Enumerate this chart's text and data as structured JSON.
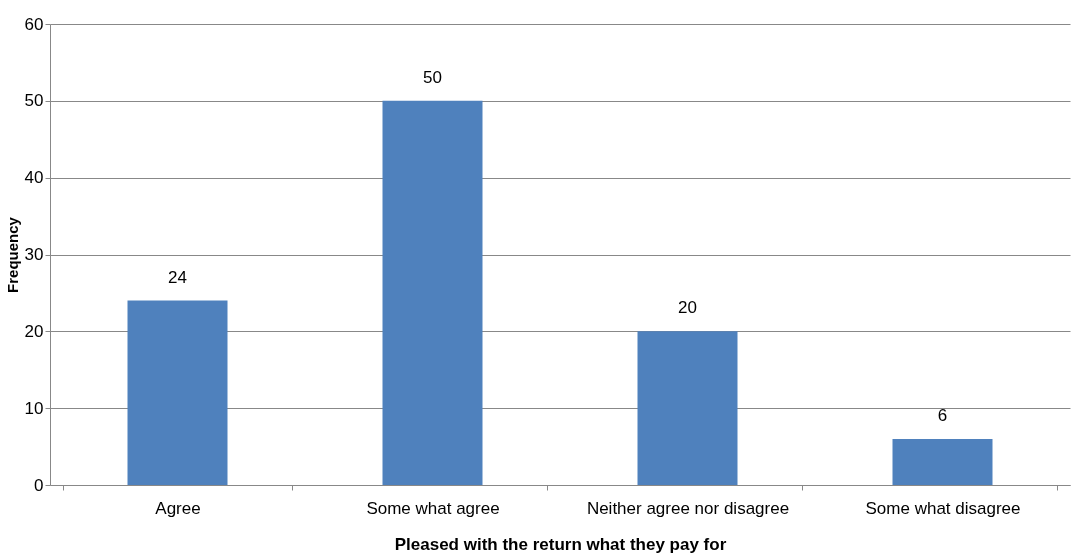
{
  "chart_data": {
    "type": "bar",
    "xlabel": "Pleased with the return what they pay for",
    "ylabel": "Frequency",
    "categories": [
      "Agree",
      "Some what agree",
      "Neither agree nor disagree",
      "Some what disagree"
    ],
    "values": [
      24,
      50,
      20,
      6
    ],
    "color": "#4f81bd",
    "ylim": [
      0,
      60
    ],
    "yticks": [
      0,
      10,
      20,
      30,
      40,
      50,
      60
    ],
    "grid": "y",
    "data_labels": true
  }
}
